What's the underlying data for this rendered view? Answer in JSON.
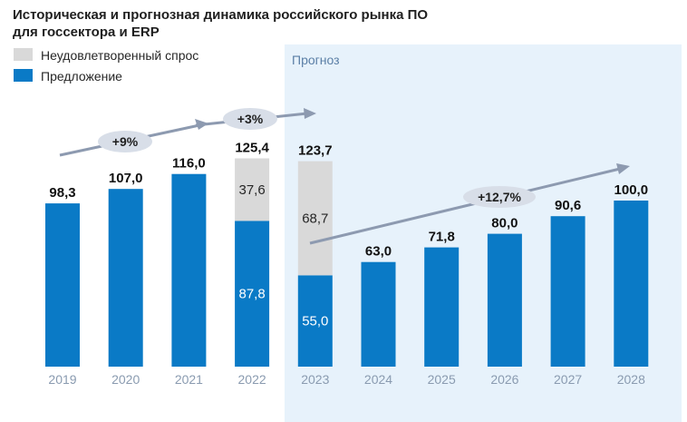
{
  "chart_data": {
    "type": "bar",
    "stacked": true,
    "title_lines": [
      "Историческая и прогнозная динамика российского рынка ПО",
      "для госсектора и ERP"
    ],
    "forecast_label": "Прогноз",
    "forecast_start": "2023",
    "categories": [
      "2019",
      "2020",
      "2021",
      "2022",
      "2023",
      "2024",
      "2025",
      "2026",
      "2027",
      "2028"
    ],
    "series": [
      {
        "name": "Предложение",
        "color": "#0a7ac6",
        "values": [
          98.3,
          107.0,
          116.0,
          87.8,
          55.0,
          63.0,
          71.8,
          80.0,
          90.6,
          100.0
        ],
        "labels": [
          "",
          "",
          "",
          "87,8",
          "55,0",
          "",
          "",
          "",
          "",
          ""
        ]
      },
      {
        "name": "Неудовлетворенный спрос",
        "color": "#d9d9d9",
        "values": [
          0,
          0,
          0,
          37.6,
          68.7,
          0,
          0,
          0,
          0,
          0
        ],
        "labels": [
          "",
          "",
          "",
          "37,6",
          "68,7",
          "",
          "",
          "",
          "",
          ""
        ]
      }
    ],
    "totals": [
      "98,3",
      "107,0",
      "116,0",
      "125,4",
      "123,7",
      "63,0",
      "71,8",
      "80,0",
      "90,6",
      "100,0"
    ],
    "legend": [
      {
        "name": "Неудовлетворенный спрос",
        "color": "#d9d9d9"
      },
      {
        "name": "Предложение",
        "color": "#0a7ac6"
      }
    ],
    "growth_annotations": [
      "+9%",
      "+3%",
      "+12,7%"
    ],
    "ylim": [
      0,
      140
    ],
    "grid": false,
    "legend_position": "top-left"
  }
}
